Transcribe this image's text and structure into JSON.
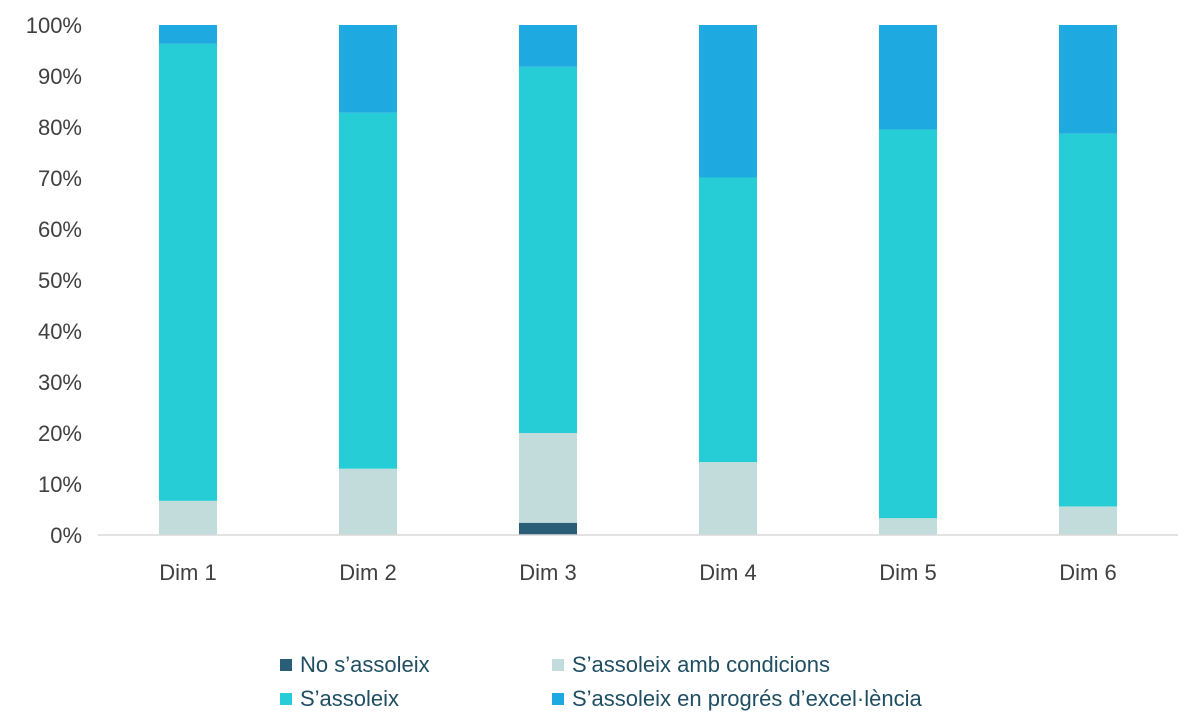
{
  "chart_data": {
    "type": "bar",
    "stacked": true,
    "percent_stacked": true,
    "categories": [
      "Dim 1",
      "Dim 2",
      "Dim 3",
      "Dim 4",
      "Dim 5",
      "Dim 6"
    ],
    "series": [
      {
        "name": "No s’assoleix",
        "color": "#2a5e78",
        "values": [
          0,
          0,
          2.4,
          0,
          0,
          0
        ]
      },
      {
        "name": "S’assoleix amb condicions",
        "color": "#c2dcdb",
        "values": [
          6.7,
          13.0,
          17.6,
          14.3,
          3.3,
          5.6
        ]
      },
      {
        "name": "S’assoleix",
        "color": "#27cdd6",
        "values": [
          89.6,
          69.8,
          71.8,
          55.8,
          76.2,
          73.1
        ]
      },
      {
        "name": "S’assoleix en progrés d’excel·lència",
        "color": "#1fa9e1",
        "values": [
          3.7,
          17.2,
          8.2,
          29.9,
          20.5,
          21.3
        ]
      }
    ],
    "y_ticks": [
      "0%",
      "10%",
      "20%",
      "30%",
      "40%",
      "50%",
      "60%",
      "70%",
      "80%",
      "90%",
      "100%"
    ],
    "ylim": [
      0,
      100
    ],
    "title": "",
    "xlabel": "",
    "ylabel": "",
    "grid": false,
    "legend_position": "bottom"
  }
}
